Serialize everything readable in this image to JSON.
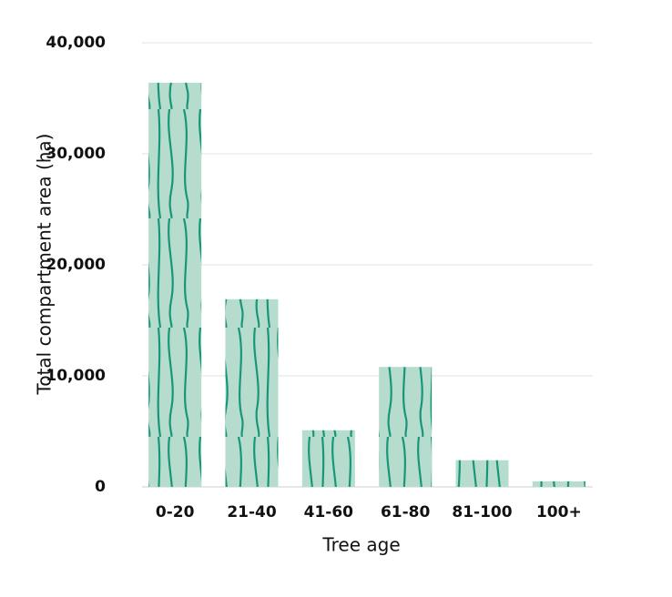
{
  "chart_data": {
    "type": "bar",
    "x_label": "Tree age",
    "y_label": "Total compartment area (ha)",
    "categories": [
      "0-20",
      "21-40",
      "41-60",
      "61-80",
      "81-100",
      "100+"
    ],
    "values": [
      36400,
      16900,
      5100,
      10800,
      2400,
      500
    ],
    "color": "#b6dccd",
    "ylim": [
      0,
      40000
    ],
    "yticks": [
      0,
      {
        "value": 10000,
        "label": "10,000"
      },
      {
        "value": 20000,
        "label": "20,000"
      },
      {
        "value": 30000,
        "label": "30,000"
      },
      {
        "value": 40000,
        "label": "40,000"
      }
    ],
    "grid": true
  }
}
